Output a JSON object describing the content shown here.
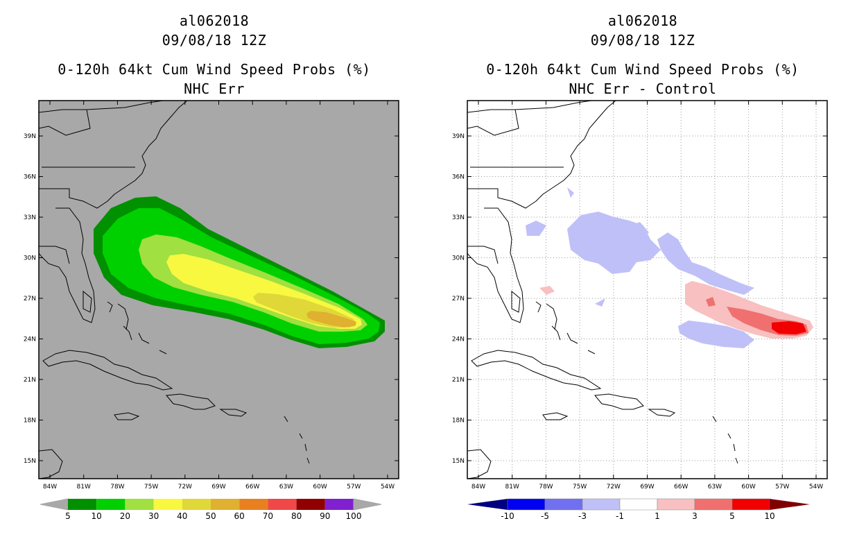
{
  "colors": {
    "left_bg": "#a8a8a8",
    "right_bg": "#ffffff",
    "coast": "#000000"
  },
  "left": {
    "storm_id": "al062018",
    "datetime": "09/08/18 12Z",
    "title": "0-120h 64kt Cum Wind Speed Probs (%)",
    "subtitle": "NHC Err",
    "lat_ticks": [
      "39N",
      "36N",
      "33N",
      "30N",
      "27N",
      "24N",
      "21N",
      "18N",
      "15N"
    ],
    "lon_ticks": [
      "84W",
      "81W",
      "78W",
      "75W",
      "72W",
      "69W",
      "66W",
      "63W",
      "60W",
      "57W",
      "54W"
    ],
    "legend_labels": [
      "5",
      "10",
      "20",
      "30",
      "40",
      "50",
      "60",
      "70",
      "80",
      "90",
      "100"
    ],
    "legend_colors": [
      "#009000",
      "#00d000",
      "#a0e040",
      "#f8f840",
      "#e0d838",
      "#e0b030",
      "#e88020",
      "#f04848",
      "#900000",
      "#8020d0"
    ]
  },
  "right": {
    "storm_id": "al062018",
    "datetime": "09/08/18 12Z",
    "title": "0-120h 64kt Cum Wind Speed Probs (%)",
    "subtitle": "NHC Err - Control",
    "lat_ticks": [
      "39N",
      "36N",
      "33N",
      "30N",
      "27N",
      "24N",
      "21N",
      "18N",
      "15N"
    ],
    "lon_ticks": [
      "84W",
      "81W",
      "78W",
      "75W",
      "72W",
      "69W",
      "66W",
      "63W",
      "60W",
      "57W",
      "54W"
    ],
    "legend_labels": [
      "-10",
      "-5",
      "-3",
      "-1",
      "1",
      "3",
      "5",
      "10"
    ],
    "legend_colors": [
      "#000080",
      "#0000f0",
      "#7070f0",
      "#c0c0f8",
      "#ffffff",
      "#f8c0c0",
      "#f07070",
      "#f00000"
    ]
  }
}
